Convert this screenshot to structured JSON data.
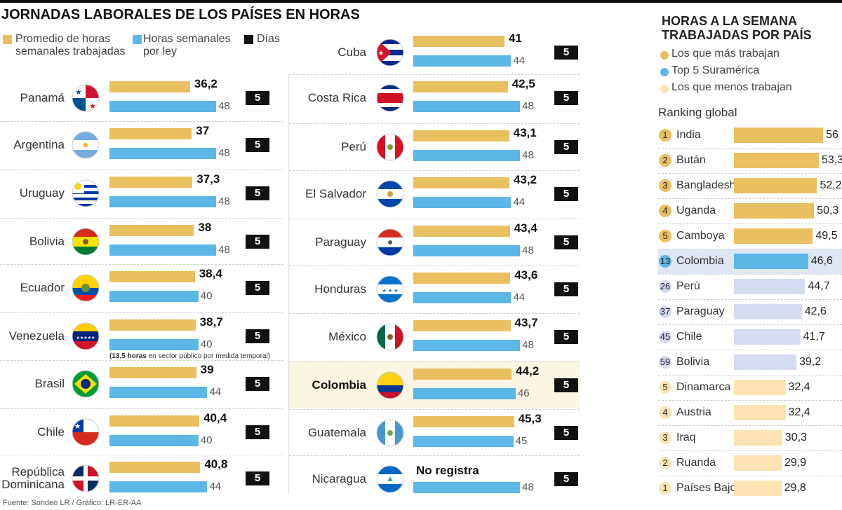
{
  "title": "JORNADAS LABORALES DE LOS PAÍSES EN HORAS",
  "legend": [
    {
      "label": "Promedio de horas semanales trabajadas",
      "color": "#e8c060"
    },
    {
      "label": "Horas semanales por ley",
      "color": "#5cb6e6"
    },
    {
      "label": "Días",
      "color": "#111111"
    }
  ],
  "footer": "Fuente: Sondeo LR / Gráfico: LR-ER-AA",
  "chart_data": [
    {
      "type": "bar",
      "title": "JORNADAS LABORALES DE LOS PAÍSES EN HORAS",
      "series": [
        {
          "name": "Promedio de horas semanales trabajadas",
          "color": "#e8c060"
        },
        {
          "name": "Horas semanales por ley",
          "color": "#5cb6e6"
        },
        {
          "name": "Días"
        }
      ],
      "rows": [
        {
          "country": "Panamá",
          "flag": "panama-flag-icon",
          "avg": "36,2",
          "law": "48",
          "days": "5"
        },
        {
          "country": "Argentina",
          "flag": "argentina-flag-icon",
          "avg": "37",
          "law": "48",
          "days": "5"
        },
        {
          "country": "Uruguay",
          "flag": "uruguay-flag-icon",
          "avg": "37,3",
          "law": "48",
          "days": "5"
        },
        {
          "country": "Bolivia",
          "flag": "bolivia-flag-icon",
          "avg": "38",
          "law": "48",
          "days": "5"
        },
        {
          "country": "Ecuador",
          "flag": "ecuador-flag-icon",
          "avg": "38,4",
          "law": "40",
          "days": "5"
        },
        {
          "country": "Venezuela",
          "flag": "venezuela-flag-icon",
          "avg": "38,7",
          "law": "40",
          "days": "5",
          "note_bold": "(13,5 horas",
          "note": " en sector público por medida temporal)"
        },
        {
          "country": "Brasil",
          "flag": "brasil-flag-icon",
          "avg": "39",
          "law": "44",
          "days": "5"
        },
        {
          "country": "Chile",
          "flag": "chile-flag-icon",
          "avg": "40,4",
          "law": "40",
          "days": "5"
        },
        {
          "country": "República Dominicana",
          "flag": "dominican-flag-icon",
          "avg": "40,8",
          "law": "44",
          "days": "5"
        },
        {
          "country": "Cuba",
          "flag": "cuba-flag-icon",
          "avg": "41",
          "law": "44",
          "days": "5"
        },
        {
          "country": "Costa Rica",
          "flag": "costa-rica-flag-icon",
          "avg": "42,5",
          "law": "48",
          "days": "5"
        },
        {
          "country": "Perú",
          "flag": "peru-flag-icon",
          "avg": "43,1",
          "law": "48",
          "days": "5"
        },
        {
          "country": "El Salvador",
          "flag": "el-salvador-flag-icon",
          "avg": "43,2",
          "law": "44",
          "days": "5"
        },
        {
          "country": "Paraguay",
          "flag": "paraguay-flag-icon",
          "avg": "43,4",
          "law": "48",
          "days": "5"
        },
        {
          "country": "Honduras",
          "flag": "honduras-flag-icon",
          "avg": "43,6",
          "law": "44",
          "days": "5"
        },
        {
          "country": "México",
          "flag": "mexico-flag-icon",
          "avg": "43,7",
          "law": "48",
          "days": "5"
        },
        {
          "country": "Colombia",
          "flag": "colombia-flag-icon",
          "avg": "44,2",
          "law": "46",
          "days": "5",
          "highlight": true
        },
        {
          "country": "Guatemala",
          "flag": "guatemala-flag-icon",
          "avg": "45,3",
          "law": "45",
          "days": "5"
        },
        {
          "country": "Nicaragua",
          "flag": "nicaragua-flag-icon",
          "avg": "No registra",
          "law": "48",
          "days": "5"
        }
      ]
    },
    {
      "type": "bar",
      "title": "HORAS A LA SEMANA TRABAJADAS POR PAÍS",
      "subtitle": "Ranking global",
      "legend": [
        {
          "label": "Los que más trabajan",
          "color": "#e8c060"
        },
        {
          "label": "Top 5 Suramérica",
          "color": "#5cb6e6"
        },
        {
          "label": "Los que menos trabajan",
          "color": "#fbe3b3"
        }
      ],
      "rows": [
        {
          "rank": "1",
          "country": "India",
          "value": "56",
          "group": "top"
        },
        {
          "rank": "2",
          "country": "Bután",
          "value": "53,3",
          "group": "top"
        },
        {
          "rank": "3",
          "country": "Bangladesh",
          "value": "52,2",
          "group": "top"
        },
        {
          "rank": "4",
          "country": "Uganda",
          "value": "50,3",
          "group": "top"
        },
        {
          "rank": "5",
          "country": "Camboya",
          "value": "49,5",
          "group": "top"
        },
        {
          "rank": "13",
          "country": "Colombia",
          "value": "46,6",
          "group": "colombia"
        },
        {
          "rank": "26",
          "country": "Perú",
          "value": "44,7",
          "group": "sa"
        },
        {
          "rank": "37",
          "country": "Paraguay",
          "value": "42,6",
          "group": "sa"
        },
        {
          "rank": "45",
          "country": "Chile",
          "value": "41,7",
          "group": "sa"
        },
        {
          "rank": "59",
          "country": "Bolivia",
          "value": "39,2",
          "group": "sa"
        },
        {
          "rank": "5",
          "country": "Dinamarca",
          "value": "32,4",
          "group": "low"
        },
        {
          "rank": "4",
          "country": "Austria",
          "value": "32,4",
          "group": "low"
        },
        {
          "rank": "3",
          "country": "Iraq",
          "value": "30,3",
          "group": "low"
        },
        {
          "rank": "2",
          "country": "Ruanda",
          "value": "29,9",
          "group": "low"
        },
        {
          "rank": "1",
          "country": "Países Bajos",
          "value": "29,8",
          "group": "low"
        }
      ]
    }
  ]
}
